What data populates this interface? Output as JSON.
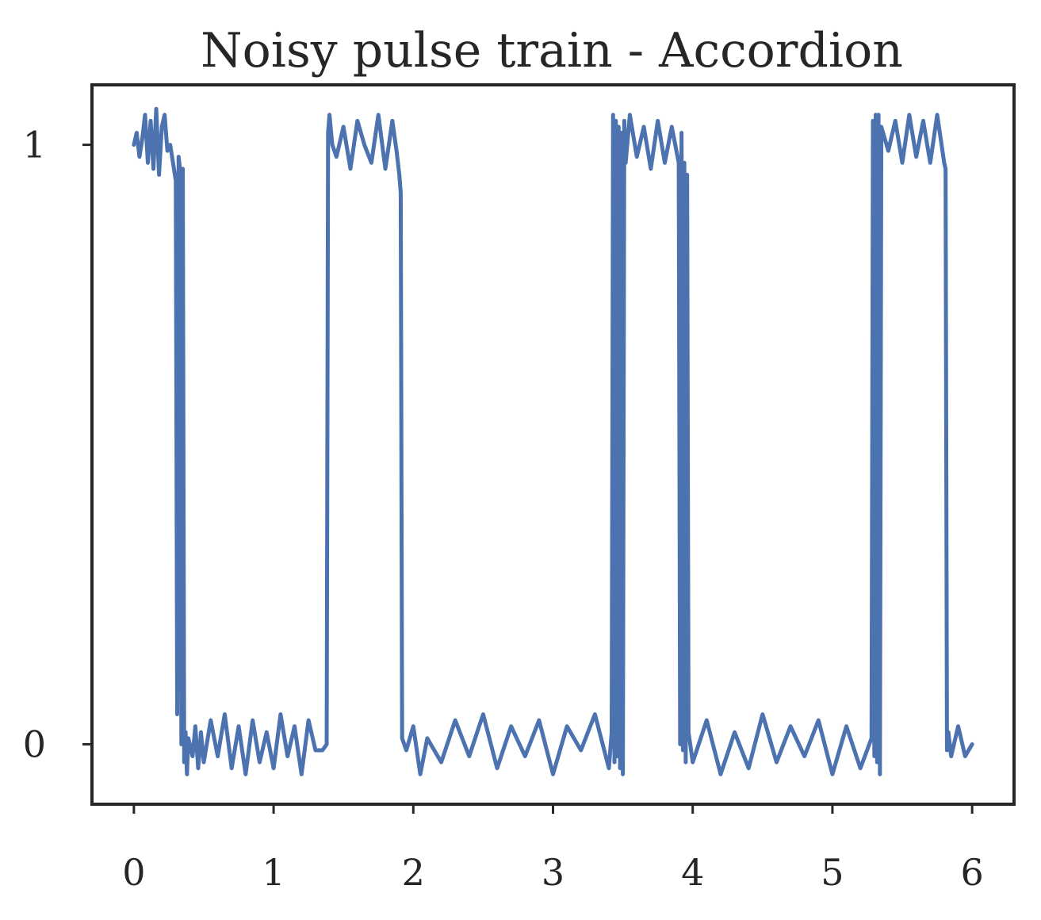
{
  "chart_data": {
    "type": "line",
    "title": "Noisy pulse train - Accordion",
    "xlabel": "",
    "ylabel": "",
    "xlim": [
      -0.3,
      6.3
    ],
    "ylim": [
      -0.1,
      1.1
    ],
    "x_ticks": [
      0,
      1,
      2,
      3,
      4,
      5,
      6
    ],
    "x_tick_labels": [
      "0",
      "1",
      "2",
      "3",
      "4",
      "5",
      "6"
    ],
    "y_ticks": [
      0,
      1
    ],
    "y_tick_labels": [
      "0",
      "1"
    ],
    "grid": false,
    "legend": "none",
    "line_color": "#4c72b0",
    "axis_color": "#262626",
    "series": [
      {
        "x": [
          0.0,
          0.02,
          0.04,
          0.06,
          0.08,
          0.1,
          0.12,
          0.14,
          0.16,
          0.18,
          0.2,
          0.22,
          0.24,
          0.26,
          0.28,
          0.3,
          0.31,
          0.32,
          0.33,
          0.34,
          0.35,
          0.36,
          0.37,
          0.38,
          0.39,
          0.4,
          0.42,
          0.44,
          0.46,
          0.48,
          0.5,
          0.55,
          0.6,
          0.65,
          0.7,
          0.75,
          0.8,
          0.85,
          0.9,
          0.95,
          1.0,
          1.05,
          1.1,
          1.15,
          1.2,
          1.25,
          1.3,
          1.35,
          1.38,
          1.39,
          1.4,
          1.42,
          1.45,
          1.5,
          1.55,
          1.6,
          1.65,
          1.7,
          1.75,
          1.8,
          1.85,
          1.88,
          1.9,
          1.91,
          1.92,
          1.95,
          2.0,
          2.05,
          2.1,
          2.2,
          2.3,
          2.4,
          2.5,
          2.6,
          2.7,
          2.8,
          2.9,
          3.0,
          3.1,
          3.2,
          3.3,
          3.4,
          3.42,
          3.43,
          3.44,
          3.45,
          3.46,
          3.47,
          3.48,
          3.49,
          3.5,
          3.51,
          3.52,
          3.55,
          3.6,
          3.65,
          3.7,
          3.75,
          3.8,
          3.85,
          3.9,
          3.91,
          3.92,
          3.93,
          3.94,
          3.95,
          3.96,
          3.97,
          4.0,
          4.1,
          4.2,
          4.3,
          4.4,
          4.5,
          4.6,
          4.7,
          4.8,
          4.9,
          5.0,
          5.1,
          5.2,
          5.28,
          5.29,
          5.3,
          5.31,
          5.32,
          5.33,
          5.34,
          5.35,
          5.4,
          5.45,
          5.5,
          5.55,
          5.6,
          5.65,
          5.7,
          5.75,
          5.8,
          5.81,
          5.82,
          5.83,
          5.85,
          5.9,
          5.95,
          6.0
        ],
        "y": [
          1.0,
          1.02,
          0.98,
          1.01,
          1.05,
          0.97,
          1.04,
          0.96,
          1.06,
          0.95,
          1.03,
          1.05,
          0.99,
          1.0,
          0.97,
          0.94,
          0.05,
          0.98,
          0.96,
          0.0,
          0.96,
          -0.03,
          0.02,
          -0.05,
          0.01,
          0.0,
          -0.02,
          0.03,
          -0.04,
          0.02,
          -0.03,
          0.04,
          -0.02,
          0.05,
          -0.04,
          0.03,
          -0.05,
          0.04,
          -0.03,
          0.02,
          -0.04,
          0.05,
          -0.02,
          0.03,
          -0.05,
          0.04,
          -0.01,
          -0.01,
          0.0,
          1.02,
          1.05,
          1.0,
          0.98,
          1.03,
          0.96,
          1.04,
          1.0,
          0.97,
          1.05,
          0.96,
          1.04,
          0.99,
          0.95,
          0.92,
          0.01,
          -0.01,
          0.03,
          -0.05,
          0.01,
          -0.03,
          0.04,
          -0.02,
          0.05,
          -0.04,
          0.03,
          -0.02,
          0.04,
          -0.05,
          0.03,
          -0.01,
          0.05,
          -0.04,
          0.02,
          1.05,
          -0.03,
          1.04,
          -0.02,
          1.03,
          -0.04,
          1.02,
          -0.05,
          1.04,
          0.97,
          1.05,
          0.98,
          1.03,
          0.96,
          1.04,
          0.97,
          1.03,
          0.97,
          0.0,
          1.02,
          -0.01,
          0.97,
          -0.03,
          0.95,
          0.02,
          -0.03,
          0.04,
          -0.05,
          0.02,
          -0.04,
          0.05,
          -0.03,
          0.03,
          -0.02,
          0.04,
          -0.05,
          0.03,
          -0.04,
          0.01,
          1.04,
          -0.02,
          1.05,
          -0.03,
          1.05,
          -0.05,
          1.03,
          0.99,
          1.04,
          0.97,
          1.05,
          0.98,
          1.04,
          0.97,
          1.05,
          0.97,
          0.96,
          -0.01,
          0.02,
          -0.02,
          0.03,
          -0.02,
          0.0
        ]
      }
    ]
  }
}
